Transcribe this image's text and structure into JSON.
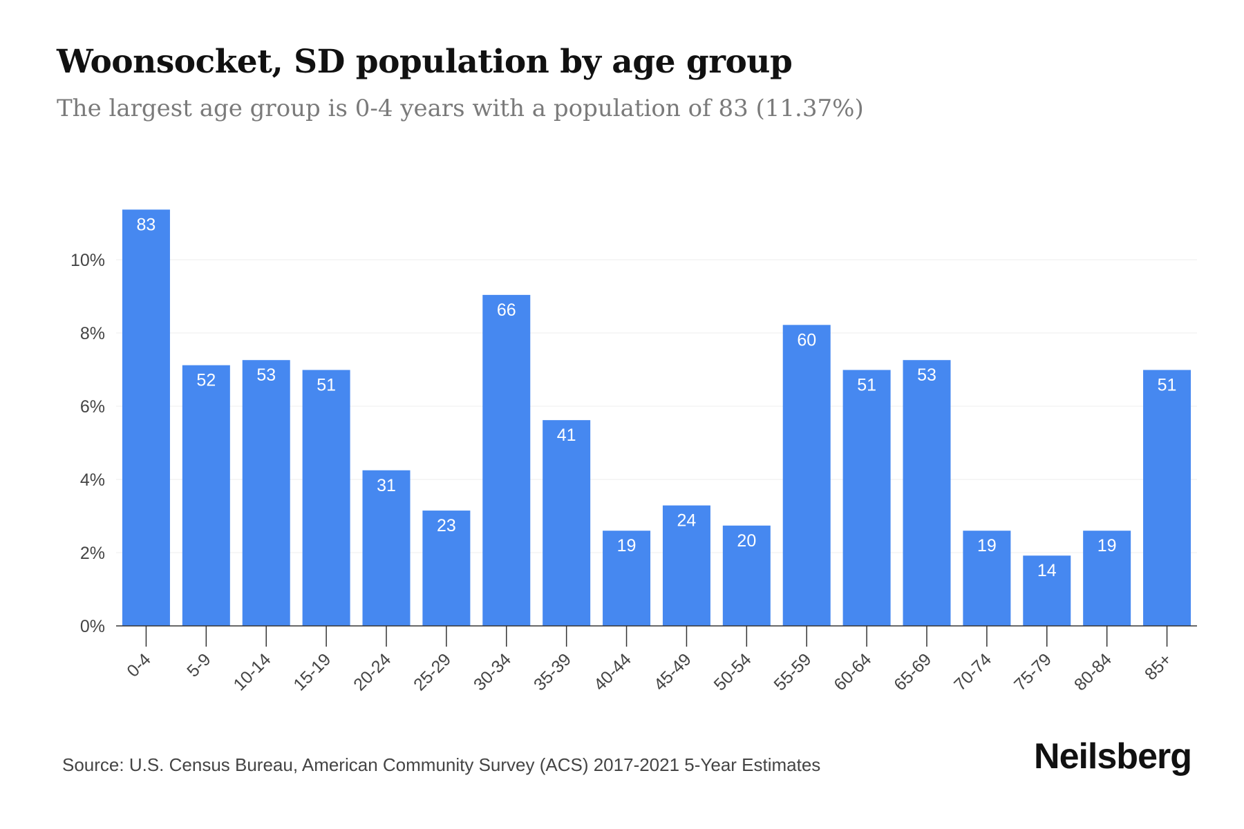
{
  "title": "Woonsocket, SD population by age group",
  "subtitle": "The largest age group is 0-4 years with a population of 83 (11.37%)",
  "source": "Source: U.S. Census Bureau, American Community Survey (ACS) 2017-2021 5-Year Estimates",
  "brand": "Neilsberg",
  "colors": {
    "bar": "#4688f0",
    "label": "#ffffff",
    "axis": "#333333",
    "grid": "#ececec",
    "tick_text": "#444444"
  },
  "chart_data": {
    "type": "bar",
    "categories": [
      "0-4",
      "5-9",
      "10-14",
      "15-19",
      "20-24",
      "25-29",
      "30-34",
      "35-39",
      "40-44",
      "45-49",
      "50-54",
      "55-59",
      "60-64",
      "65-69",
      "70-74",
      "75-79",
      "80-84",
      "85+"
    ],
    "values": [
      11.37,
      7.12,
      7.26,
      6.99,
      4.25,
      3.15,
      9.04,
      5.62,
      2.6,
      3.29,
      2.74,
      8.22,
      6.99,
      7.26,
      2.6,
      1.92,
      2.6,
      6.99
    ],
    "data_labels": [
      "83",
      "52",
      "53",
      "51",
      "31",
      "23",
      "66",
      "41",
      "19",
      "24",
      "20",
      "60",
      "51",
      "53",
      "19",
      "14",
      "19",
      "51"
    ],
    "y_ticks": [
      0,
      2,
      4,
      6,
      8,
      10
    ],
    "y_tick_labels": [
      "0%",
      "2%",
      "4%",
      "6%",
      "8%",
      "10%"
    ],
    "ylim": [
      0,
      12
    ],
    "grid": true
  }
}
